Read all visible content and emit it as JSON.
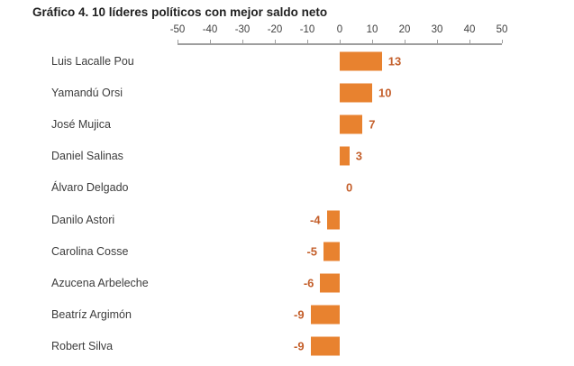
{
  "title": "Gráfico 4. 10 líderes políticos con mejor saldo neto",
  "chart_data": {
    "type": "bar",
    "orientation": "horizontal",
    "title": "Gráfico 4. 10 líderes políticos con mejor saldo neto",
    "categories": [
      "Luis Lacalle Pou",
      "Yamandú Orsi",
      "José Mujica",
      "Daniel Salinas",
      "Álvaro Delgado",
      "Danilo Astori",
      "Carolina Cosse",
      "Azucena Arbeleche",
      "Beatríz Argimón",
      "Robert Silva"
    ],
    "values": [
      13,
      10,
      7,
      3,
      0,
      -4,
      -5,
      -6,
      -9,
      -9
    ],
    "xlabel": "",
    "ylabel": "",
    "xlim": [
      -50,
      50
    ],
    "x_ticks": [
      -50,
      -40,
      -30,
      -20,
      -10,
      0,
      10,
      20,
      30,
      40,
      50
    ],
    "axis_position": "top",
    "grid": false,
    "data_labels": true,
    "legend": false,
    "colors": {
      "bar": "#E8822F",
      "value_label": "#C45F2B",
      "category_label": "#3C3C3C",
      "tick_label": "#404040",
      "axis_line": "#9E9E9E",
      "title": "#1F1F1F",
      "background": "#FFFFFF"
    }
  }
}
